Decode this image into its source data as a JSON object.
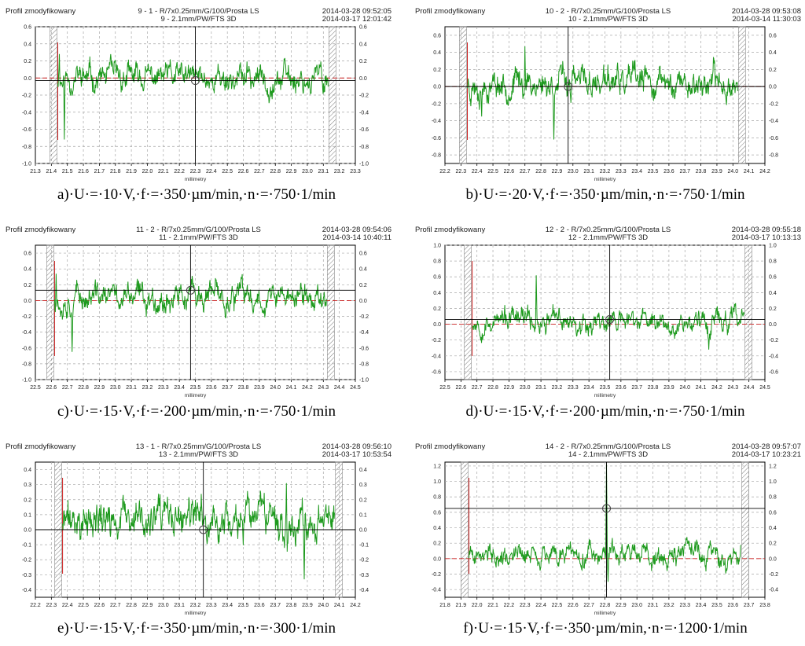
{
  "panels": [
    {
      "header": {
        "left": "Profil zmodyfikowany",
        "center1": "9 - 1 - R/7x0.25mm/G/100/Prosta LS",
        "center2": "9 - 2.1mm/PW/FTS 3D",
        "right1": "2014-03-28 09:52:05",
        "right2": "2014-03-17 12:01:42"
      },
      "caption": "a)·U·=·10·V,·f·=·350·µm/min,·n·=·750·1/min",
      "xlabel": "millimetry",
      "chart_data": {
        "type": "line",
        "x_ticks": [
          "21.3",
          "21.4",
          "21.5",
          "21.6",
          "21.7",
          "21.8",
          "21.9",
          "22.0",
          "22.1",
          "22.2",
          "22.3",
          "22.4",
          "22.5",
          "22.6",
          "22.7",
          "22.8",
          "22.9",
          "23.0",
          "23.1",
          "23.2",
          "23.3"
        ],
        "y_ticks": [
          "0.6",
          "0.4",
          "0.2",
          "0.0",
          "-0.2",
          "-0.4",
          "-0.6",
          "-0.8",
          "-1.0"
        ],
        "ylim": [
          -1.0,
          0.6
        ],
        "data_start": 21.44,
        "data_end": 23.13,
        "baseline": 0.0,
        "amplitude": 0.11,
        "seed": 11,
        "spikes": [
          {
            "x": 21.48,
            "y": -0.72
          },
          {
            "x": 21.45,
            "y": 0.28
          }
        ],
        "cursor_x": 22.3,
        "cursor_y": -0.03
      }
    },
    {
      "header": {
        "left": "Profil zmodyfikowany",
        "center1": "10 - 2 - R/7x0.25mm/G/100/Prosta LS",
        "center2": "10 - 2.1mm/PW/FTS 3D",
        "right1": "2014-03-28 09:53:08",
        "right2": "2014-03-14 11:30:03"
      },
      "caption": "b)·U·=·20·V,·f·=·350·µm/min,·n·=·750·1/min",
      "xlabel": "millimetry",
      "chart_data": {
        "type": "line",
        "x_ticks": [
          "22.2",
          "22.3",
          "22.4",
          "22.5",
          "22.6",
          "22.7",
          "22.8",
          "22.9",
          "23.0",
          "23.1",
          "23.2",
          "23.3",
          "23.4",
          "23.5",
          "23.6",
          "23.7",
          "23.8",
          "23.9",
          "24.0",
          "24.1",
          "24.2"
        ],
        "y_ticks": [
          "0.6",
          "0.4",
          "0.2",
          "0.0",
          "-0.2",
          "-0.4",
          "-0.6",
          "-0.8"
        ],
        "ylim": [
          -0.9,
          0.7
        ],
        "data_start": 22.34,
        "data_end": 24.03,
        "baseline": 0.04,
        "amplitude": 0.12,
        "seed": 23,
        "spikes": [
          {
            "x": 22.7,
            "y": 0.47
          },
          {
            "x": 22.88,
            "y": -0.62
          },
          {
            "x": 22.43,
            "y": -0.35
          }
        ],
        "cursor_x": 22.97,
        "cursor_y": 0.0
      }
    },
    {
      "header": {
        "left": "Profil zmodyfikowany",
        "center1": "11 - 2 - R/7x0.25mm/G/100/Prosta LS",
        "center2": "11 - 2.1mm/PW/FTS 3D",
        "right1": "2014-03-28 09:54:06",
        "right2": "2014-03-14 10:40:11"
      },
      "caption": "c)·U·=·15·V,·f·=·200·µm/min,·n·=·750·1/min",
      "xlabel": "millimetry",
      "chart_data": {
        "type": "line",
        "x_ticks": [
          "22.5",
          "22.6",
          "22.7",
          "22.8",
          "22.9",
          "23.0",
          "23.1",
          "23.2",
          "23.3",
          "23.4",
          "23.5",
          "23.6",
          "23.7",
          "23.8",
          "23.9",
          "24.0",
          "24.1",
          "24.2",
          "24.3",
          "24.4",
          "24.5"
        ],
        "y_ticks": [
          "0.6",
          "0.4",
          "0.2",
          "0.0",
          "-0.2",
          "-0.4",
          "-0.6",
          "-0.8",
          "-1.0"
        ],
        "ylim": [
          -1.0,
          0.7
        ],
        "data_start": 22.62,
        "data_end": 24.32,
        "baseline": 0.04,
        "amplitude": 0.12,
        "seed": 37,
        "spikes": [
          {
            "x": 22.73,
            "y": -0.65
          },
          {
            "x": 22.63,
            "y": 0.34
          }
        ],
        "cursor_x": 23.47,
        "cursor_y": 0.13
      }
    },
    {
      "header": {
        "left": "Profil zmodyfikowany",
        "center1": "12 - 2 - R/7x0.25mm/G/100/Prosta LS",
        "center2": "12 - 2.1mm/PW/FTS 3D",
        "right1": "2014-03-28 09:55:18",
        "right2": "2014-03-17 10:13:13"
      },
      "caption": "d)·U·=·15·V,·f·=·200·µm/min,·n·=·750·1/min",
      "xlabel": "millimetry",
      "chart_data": {
        "type": "line",
        "x_ticks": [
          "22.5",
          "22.6",
          "22.7",
          "22.8",
          "22.9",
          "23.0",
          "23.1",
          "23.2",
          "23.3",
          "23.4",
          "23.5",
          "23.6",
          "23.7",
          "23.8",
          "23.9",
          "24.0",
          "24.1",
          "24.2",
          "24.3",
          "24.4",
          "24.5"
        ],
        "y_ticks": [
          "1.0",
          "0.8",
          "0.6",
          "0.4",
          "0.2",
          "0.0",
          "-0.2",
          "-0.4",
          "-0.6"
        ],
        "ylim": [
          -0.7,
          1.0
        ],
        "data_start": 22.67,
        "data_end": 24.37,
        "baseline": 0.04,
        "amplitude": 0.1,
        "seed": 53,
        "spikes": [
          {
            "x": 23.07,
            "y": 0.62
          },
          {
            "x": 24.15,
            "y": -0.32
          }
        ],
        "cursor_x": 23.53,
        "cursor_y": 0.06
      }
    },
    {
      "header": {
        "left": "Profil zmodyfikowany",
        "center1": "13 - 1 - R/7x0.25mm/G/100/Prosta LS",
        "center2": "13 - 2.1mm/PW/FTS 3D",
        "right1": "2014-03-28 09:56:10",
        "right2": "2014-03-17 10:53:54"
      },
      "caption": "e)·U·=·15·V,·f·=·350·µm/min,·n·=·300·1/min",
      "xlabel": "millimetry",
      "chart_data": {
        "type": "line",
        "x_ticks": [
          "22.2",
          "22.3",
          "22.4",
          "22.5",
          "22.6",
          "22.7",
          "22.8",
          "22.9",
          "23.0",
          "23.1",
          "23.2",
          "23.3",
          "23.4",
          "23.5",
          "23.6",
          "23.7",
          "23.8",
          "23.9",
          "24.0",
          "24.1",
          "24.2"
        ],
        "y_ticks": [
          "0.4",
          "0.3",
          "0.2",
          "0.1",
          "0.0",
          "-0.1",
          "-0.2",
          "-0.3",
          "-0.4"
        ],
        "ylim": [
          -0.45,
          0.45
        ],
        "data_start": 22.37,
        "data_end": 24.07,
        "baseline": 0.05,
        "amplitude": 0.09,
        "seed": 71,
        "spikes": [
          {
            "x": 23.77,
            "y": 0.31
          },
          {
            "x": 23.88,
            "y": -0.33
          }
        ],
        "cursor_x": 23.25,
        "cursor_y": 0.0
      }
    },
    {
      "header": {
        "left": "Profil zmodyfikowany",
        "center1": "14 - 2 - R/7x0.25mm/G/100/Prosta LS",
        "center2": "14 - 2.1mm/PW/FTS 3D",
        "right1": "2014-03-28 09:57:07",
        "right2": "2014-03-17 10:23:21"
      },
      "caption": "f)·U·=·15·V,·f·=·350·µm/min,·n·=·1200·1/min",
      "xlabel": "millimetry",
      "chart_data": {
        "type": "line",
        "x_ticks": [
          "21.8",
          "21.9",
          "22.0",
          "22.1",
          "22.2",
          "22.3",
          "22.4",
          "22.5",
          "22.6",
          "22.7",
          "22.8",
          "22.9",
          "23.0",
          "23.1",
          "23.2",
          "23.3",
          "23.4",
          "23.5",
          "23.6",
          "23.7",
          "23.8"
        ],
        "y_ticks": [
          "1.2",
          "1.0",
          "0.8",
          "0.6",
          "0.4",
          "0.2",
          "0.0",
          "-0.2",
          "-0.4"
        ],
        "ylim": [
          -0.5,
          1.25
        ],
        "data_start": 21.95,
        "data_end": 23.65,
        "baseline": 0.05,
        "amplitude": 0.1,
        "seed": 89,
        "spikes": [
          {
            "x": 22.81,
            "y": 1.22
          },
          {
            "x": 22.82,
            "y": -0.3
          }
        ],
        "cursor_x": 22.81,
        "cursor_y": 0.65
      }
    }
  ],
  "colors": {
    "trace": "#1e9a1e",
    "grid": "#a8a8a8",
    "frame": "#000000",
    "red": "#cc2020",
    "cyan": "#40c0d0"
  }
}
